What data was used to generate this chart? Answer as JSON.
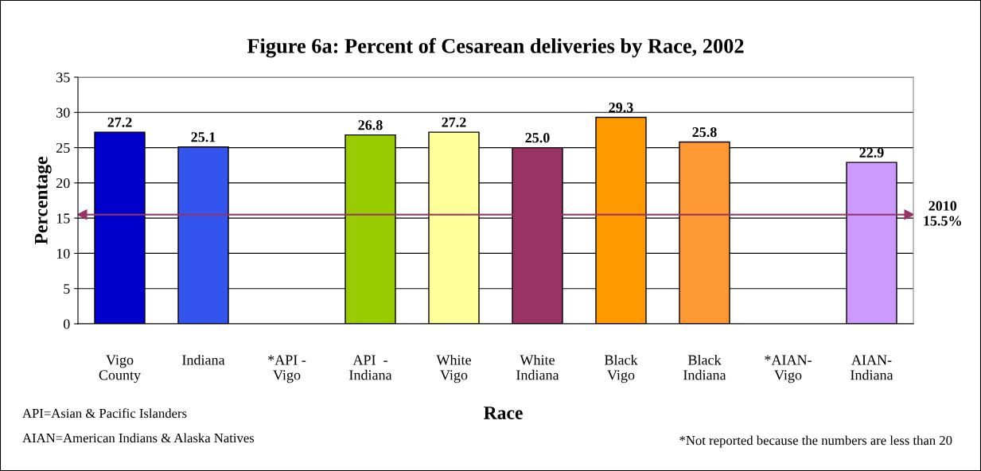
{
  "chart_data": {
    "type": "bar",
    "title": "Figure 6a: Percent of Cesarean deliveries by Race, 2002",
    "xlabel": "Race",
    "ylabel": "Percentage",
    "categories": [
      "Vigo\nCounty",
      "Indiana",
      "*API -\nVigo",
      "API  -\nIndiana",
      "White\nVigo",
      "White\nIndiana",
      "Black\nVigo",
      "Black\nIndiana",
      "*AIAN-\nVigo",
      "AIAN-\nIndiana"
    ],
    "values": [
      27.2,
      25.1,
      null,
      26.8,
      27.2,
      25.0,
      29.3,
      25.8,
      null,
      22.9
    ],
    "value_labels": [
      "27.2",
      "25.1",
      null,
      "26.8",
      "27.2",
      "25.0",
      "29.3",
      "25.8",
      null,
      "22.9"
    ],
    "colors": [
      "#0000cc",
      "#3355ee",
      "#ffffff",
      "#99cc00",
      "#ffff99",
      "#993366",
      "#ff9900",
      "#ff9933",
      "#ffffff",
      "#cc99ff"
    ],
    "ylim": [
      0,
      35
    ],
    "yticks": [
      0,
      5,
      10,
      15,
      20,
      25,
      30,
      35
    ],
    "grid": "y",
    "legend": false,
    "ref_lines": [
      {
        "axis": "y",
        "value": 15.5,
        "label": "2010\n15.5%",
        "color": "#993366"
      }
    ],
    "annotations": [
      "API=Asian & Pacific Islanders",
      "AIAN=American Indians & Alaska Natives",
      "*Not reported because the numbers are less than 20"
    ]
  }
}
